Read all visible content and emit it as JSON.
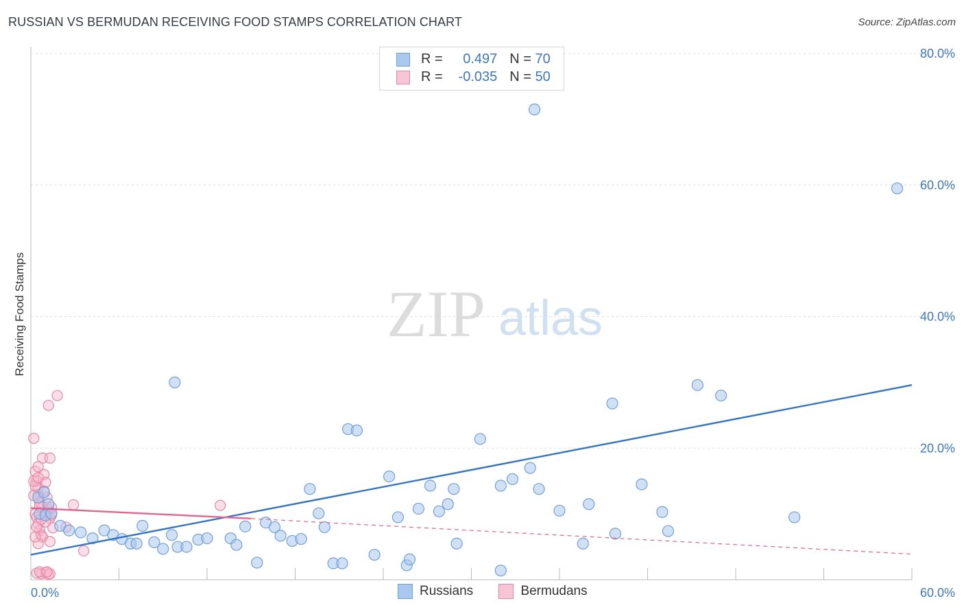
{
  "title": "RUSSIAN VS BERMUDAN RECEIVING FOOD STAMPS CORRELATION CHART",
  "source": "Source: ZipAtlas.com",
  "watermark": {
    "zip": "ZIP",
    "atlas": "atlas"
  },
  "colors": {
    "russians_fill": "#aac8ee",
    "russians_stroke": "#6f9fdc",
    "russians_line": "#2f74cf",
    "bermudans_fill": "#f6b9cb",
    "bermudans_stroke": "#ea86a4",
    "bermudans_line": "#e8628a",
    "axis_label": "#3a77c9",
    "grid": "#dedede"
  },
  "legend": {
    "russians": {
      "r_label": "R =",
      "r_value": "0.497",
      "n_label": "N =",
      "n_value": "70"
    },
    "bermudans": {
      "r_label": "R =",
      "r_value": "-0.035",
      "n_label": "N =",
      "n_value": "50"
    }
  },
  "bottom_legend": {
    "russians": "Russians",
    "bermudans": "Bermudans"
  },
  "chart_data": {
    "type": "scatter",
    "title": "RUSSIAN VS BERMUDAN RECEIVING FOOD STAMPS CORRELATION CHART",
    "xlabel": "",
    "ylabel": "Receiving Food Stamps",
    "xlim": [
      0,
      60
    ],
    "ylim": [
      0,
      80
    ],
    "x_tick_labels": [
      "0.0%",
      "60.0%"
    ],
    "y_ticks": [
      {
        "value": 20,
        "label": "20.0%"
      },
      {
        "value": 40,
        "label": "40.0%"
      },
      {
        "value": 60,
        "label": "60.0%"
      },
      {
        "value": 80,
        "label": "80.0%"
      }
    ],
    "x_minor_ticks": [
      6,
      12,
      18,
      24,
      30,
      36,
      42,
      48,
      54,
      60
    ],
    "series": [
      {
        "name": "Russians",
        "points": [
          [
            0.6,
            10.0
          ],
          [
            1.0,
            9.8
          ],
          [
            1.2,
            11.5
          ],
          [
            2.0,
            8.2
          ],
          [
            2.6,
            7.5
          ],
          [
            3.4,
            7.2
          ],
          [
            4.2,
            6.3
          ],
          [
            5.0,
            7.5
          ],
          [
            5.6,
            6.8
          ],
          [
            6.2,
            6.2
          ],
          [
            6.8,
            5.5
          ],
          [
            7.2,
            5.5
          ],
          [
            7.6,
            8.2
          ],
          [
            8.4,
            5.7
          ],
          [
            9.0,
            4.7
          ],
          [
            9.6,
            6.8
          ],
          [
            10.0,
            5.0
          ],
          [
            10.6,
            5.0
          ],
          [
            11.4,
            6.1
          ],
          [
            12.0,
            6.3
          ],
          [
            13.6,
            6.3
          ],
          [
            14.0,
            5.3
          ],
          [
            14.6,
            8.1
          ],
          [
            15.4,
            2.6
          ],
          [
            16.0,
            8.7
          ],
          [
            16.6,
            8.0
          ],
          [
            17.0,
            6.7
          ],
          [
            17.8,
            5.9
          ],
          [
            18.4,
            6.2
          ],
          [
            19.0,
            13.8
          ],
          [
            19.6,
            10.1
          ],
          [
            20.0,
            8.0
          ],
          [
            20.6,
            2.5
          ],
          [
            21.2,
            2.5
          ],
          [
            21.6,
            22.9
          ],
          [
            22.2,
            22.7
          ],
          [
            23.4,
            3.8
          ],
          [
            24.4,
            15.7
          ],
          [
            25.0,
            9.5
          ],
          [
            25.6,
            2.2
          ],
          [
            25.8,
            3.1
          ],
          [
            26.4,
            10.8
          ],
          [
            27.2,
            14.3
          ],
          [
            27.8,
            10.4
          ],
          [
            28.4,
            11.5
          ],
          [
            28.8,
            13.8
          ],
          [
            29.0,
            5.5
          ],
          [
            30.6,
            21.4
          ],
          [
            32.0,
            1.4
          ],
          [
            32.0,
            14.3
          ],
          [
            32.8,
            15.3
          ],
          [
            34.0,
            17.0
          ],
          [
            34.6,
            13.8
          ],
          [
            36.0,
            10.5
          ],
          [
            37.6,
            5.5
          ],
          [
            38.0,
            11.5
          ],
          [
            39.6,
            26.8
          ],
          [
            39.8,
            7.0
          ],
          [
            41.6,
            14.5
          ],
          [
            43.0,
            10.3
          ],
          [
            43.4,
            7.4
          ],
          [
            45.4,
            29.6
          ],
          [
            47.0,
            28.0
          ],
          [
            52.0,
            9.5
          ],
          [
            9.8,
            30.0
          ],
          [
            34.3,
            71.5
          ],
          [
            59.0,
            59.5
          ],
          [
            0.5,
            12.5
          ],
          [
            0.9,
            13.3
          ],
          [
            1.4,
            10.1
          ]
        ]
      },
      {
        "name": "Bermudans",
        "points": [
          [
            0.2,
            21.5
          ],
          [
            0.3,
            16.5
          ],
          [
            0.4,
            15.0
          ],
          [
            0.5,
            13.0
          ],
          [
            0.6,
            11.8
          ],
          [
            0.3,
            10.0
          ],
          [
            0.4,
            9.5
          ],
          [
            0.5,
            8.5
          ],
          [
            0.6,
            7.5
          ],
          [
            0.7,
            6.8
          ],
          [
            0.8,
            6.5
          ],
          [
            0.5,
            5.5
          ],
          [
            0.9,
            16.0
          ],
          [
            1.0,
            14.8
          ],
          [
            1.1,
            12.5
          ],
          [
            1.2,
            10.7
          ],
          [
            1.3,
            9.4
          ],
          [
            0.8,
            18.5
          ],
          [
            1.3,
            18.5
          ],
          [
            1.0,
            8.8
          ],
          [
            1.4,
            9.8
          ],
          [
            1.5,
            7.9
          ],
          [
            1.3,
            5.8
          ],
          [
            1.2,
            26.5
          ],
          [
            1.8,
            28.0
          ],
          [
            2.4,
            8.0
          ],
          [
            2.9,
            11.4
          ],
          [
            0.7,
            0.9
          ],
          [
            1.0,
            1.1
          ],
          [
            1.2,
            0.8
          ],
          [
            1.3,
            0.9
          ],
          [
            0.4,
            1.0
          ],
          [
            0.6,
            1.2
          ],
          [
            1.1,
            1.2
          ],
          [
            3.6,
            4.4
          ],
          [
            12.9,
            11.3
          ],
          [
            0.3,
            6.5
          ],
          [
            0.5,
            14.0
          ],
          [
            0.8,
            11.0
          ],
          [
            0.9,
            13.5
          ],
          [
            0.2,
            12.8
          ],
          [
            0.4,
            8.0
          ],
          [
            0.6,
            11.2
          ],
          [
            0.7,
            9.2
          ],
          [
            0.3,
            14.3
          ],
          [
            0.5,
            17.2
          ],
          [
            1.0,
            10.3
          ],
          [
            1.4,
            11.0
          ],
          [
            0.2,
            15.0
          ],
          [
            0.5,
            15.5
          ]
        ]
      }
    ],
    "trendlines": [
      {
        "series": "Russians",
        "x": [
          0,
          60
        ],
        "y": [
          3.8,
          29.6
        ],
        "style": "solid"
      },
      {
        "series": "Bermudans",
        "x": [
          0,
          15
        ],
        "y": [
          10.9,
          9.3
        ],
        "style": "solid"
      },
      {
        "series": "Bermudans",
        "x": [
          15,
          60
        ],
        "y": [
          9.3,
          3.9
        ],
        "style": "dashed"
      }
    ],
    "legend_position": "top-center"
  }
}
